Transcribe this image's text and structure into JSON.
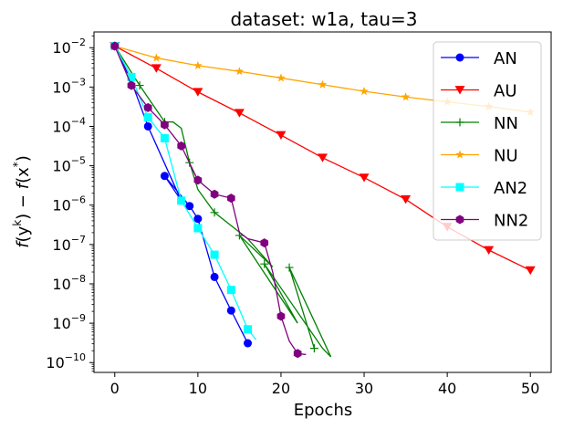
{
  "chart_data": {
    "type": "line",
    "title": "dataset: w1a, tau=3",
    "xlabel": "Epochs",
    "ylabel": "f(y^k) − f(x*)",
    "ylabel_parts": {
      "f1": "f",
      "y": "(y",
      "k": "k",
      "mid": ") − ",
      "f2": "f",
      "x": "(x",
      "star": "*",
      "end": ")"
    },
    "yscale": "log",
    "xlim": [
      -2.5,
      52.5
    ],
    "ylim_log10": [
      -10.25,
      -1.6
    ],
    "x_ticks": [
      {
        "value": 0,
        "label": "0"
      },
      {
        "value": 10,
        "label": "10"
      },
      {
        "value": 20,
        "label": "20"
      },
      {
        "value": 30,
        "label": "30"
      },
      {
        "value": 40,
        "label": "40"
      },
      {
        "value": 50,
        "label": "50"
      }
    ],
    "y_ticks": [
      {
        "exp": -2,
        "base": "10",
        "sup": "−2"
      },
      {
        "exp": -3,
        "base": "10",
        "sup": "−3"
      },
      {
        "exp": -4,
        "base": "10",
        "sup": "−4"
      },
      {
        "exp": -5,
        "base": "10",
        "sup": "−5"
      },
      {
        "exp": -6,
        "base": "10",
        "sup": "−6"
      },
      {
        "exp": -7,
        "base": "10",
        "sup": "−7"
      },
      {
        "exp": -8,
        "base": "10",
        "sup": "−8"
      },
      {
        "exp": -9,
        "base": "10",
        "sup": "−9"
      },
      {
        "exp": -10,
        "base": "10",
        "sup": "−10"
      }
    ],
    "legend_position": "upper right",
    "series": [
      {
        "name": "AN",
        "color": "#0000ff",
        "marker": "circle",
        "x": [
          0,
          4,
          6,
          9,
          10,
          12,
          14,
          16
        ],
        "y": [
          0.011,
          0.0001,
          5.5e-06,
          9.5e-07,
          4.5e-07,
          1.5e-08,
          2.1e-09,
          3.1e-10
        ],
        "line_only": [
          {
            "at": 1,
            "x": 2,
            "y": 0.0014
          },
          {
            "at": 3,
            "x": 8,
            "y": 1.3e-06
          }
        ]
      },
      {
        "name": "AU",
        "color": "#ff0000",
        "marker": "triangle-down",
        "x": [
          0,
          5,
          10,
          15,
          20,
          25,
          30,
          35,
          40,
          45,
          50
        ],
        "y": [
          0.011,
          0.003,
          0.00075,
          0.00022,
          6e-05,
          1.6e-05,
          5e-06,
          1.4e-06,
          2.8e-07,
          7.2e-08,
          2.2e-08
        ]
      },
      {
        "name": "NN",
        "color": "#008000",
        "marker": "plus",
        "x": [
          0,
          3,
          6,
          9,
          12,
          15,
          18,
          21,
          24
        ],
        "y": [
          0.011,
          0.0011,
          0.00013,
          1.2e-05,
          6.5e-07,
          1.7e-07,
          3.2e-08,
          2.6e-08,
          2.3e-10
        ],
        "line_only": [
          {
            "at": 3,
            "x": 7,
            "y": 0.00013
          },
          {
            "at": 4,
            "x": 8,
            "y": 9e-05
          },
          {
            "at": 6,
            "x": 10,
            "y": 2.5e-06
          },
          {
            "at": 8,
            "x": 16,
            "y": 1.4e-07
          },
          {
            "at": 9,
            "x": 19,
            "y": 2.7e-08
          },
          {
            "at": 11,
            "x": 22,
            "y": 1e-09
          },
          {
            "at": 13,
            "x": 25,
            "y": 2.3e-10
          },
          {
            "at": 14,
            "x": 26,
            "y": 1.4e-10
          }
        ]
      },
      {
        "name": "NU",
        "color": "#ffa500",
        "marker": "star",
        "x": [
          0,
          5,
          10,
          15,
          20,
          25,
          30,
          35,
          40,
          45,
          50
        ],
        "y": [
          0.011,
          0.0055,
          0.0035,
          0.0025,
          0.0017,
          0.00115,
          0.00078,
          0.00056,
          0.00042,
          0.00032,
          0.00023
        ]
      },
      {
        "name": "AN2",
        "color": "#00ffff",
        "marker": "square",
        "x": [
          0,
          2,
          4,
          6,
          8,
          10,
          12,
          14,
          16
        ],
        "y": [
          0.011,
          0.0018,
          0.00017,
          5e-05,
          1.3e-06,
          2.6e-07,
          5.5e-08,
          7e-09,
          7e-10
        ],
        "line_only": [
          {
            "at": 9,
            "x": 17,
            "y": 3.8e-10
          }
        ]
      },
      {
        "name": "NN2",
        "color": "#800080",
        "marker": "hexagon",
        "x": [
          0,
          2,
          4,
          6,
          8,
          10,
          12,
          14,
          18,
          20,
          22
        ],
        "y": [
          0.011,
          0.0011,
          0.0003,
          0.00011,
          3.2e-05,
          4.3e-06,
          1.9e-06,
          1.5e-06,
          1.1e-07,
          1.5e-09,
          1.7e-10
        ],
        "line_only": [
          {
            "at": 8,
            "x": 15,
            "y": 2e-07
          },
          {
            "at": 9,
            "x": 16,
            "y": 1.4e-07
          },
          {
            "at": 11,
            "x": 19,
            "y": 2e-08
          },
          {
            "at": 13,
            "x": 21,
            "y": 3.5e-10
          },
          {
            "at": 15,
            "x": 23,
            "y": 1.6e-10
          }
        ]
      }
    ]
  }
}
